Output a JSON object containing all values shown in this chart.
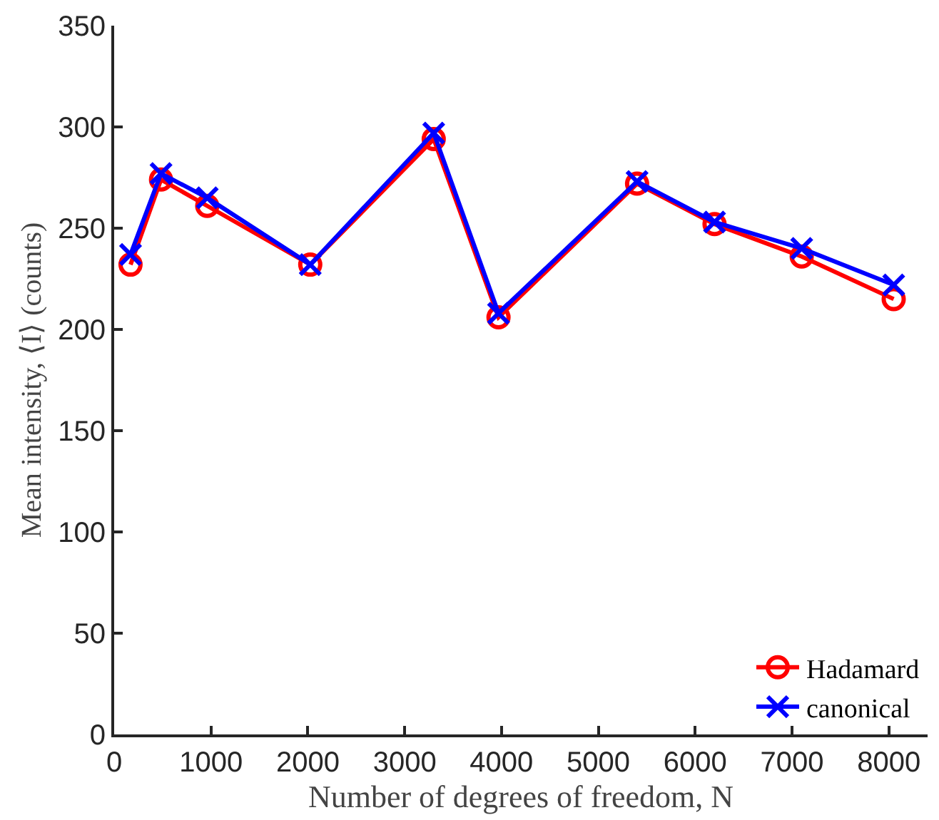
{
  "chart_data": {
    "type": "line",
    "xlabel": "Number of degrees of freedom, N",
    "ylabel": "Mean intensity, ⟨I⟩ (counts)",
    "x": [
      169,
      484,
      961,
      2025,
      3300,
      3969,
      5400,
      6200,
      7100,
      8050
    ],
    "series": [
      {
        "name": "Hadamard",
        "color": "#ff0000",
        "marker": "circle",
        "values": [
          232,
          274,
          261,
          232,
          294,
          206,
          272,
          252,
          236,
          215
        ]
      },
      {
        "name": "canonical",
        "color": "#0000ff",
        "marker": "cross",
        "values": [
          237,
          277,
          265,
          232,
          297,
          208,
          273,
          253,
          240,
          222
        ]
      }
    ],
    "xlim": [
      0,
      8400
    ],
    "xticks": [
      0,
      1000,
      2000,
      3000,
      4000,
      5000,
      6000,
      7000,
      8000
    ],
    "ylim": [
      0,
      350
    ],
    "yticks": [
      0,
      50,
      100,
      150,
      200,
      250,
      300,
      350
    ],
    "legend": "bottom right",
    "line_style": "solid"
  }
}
